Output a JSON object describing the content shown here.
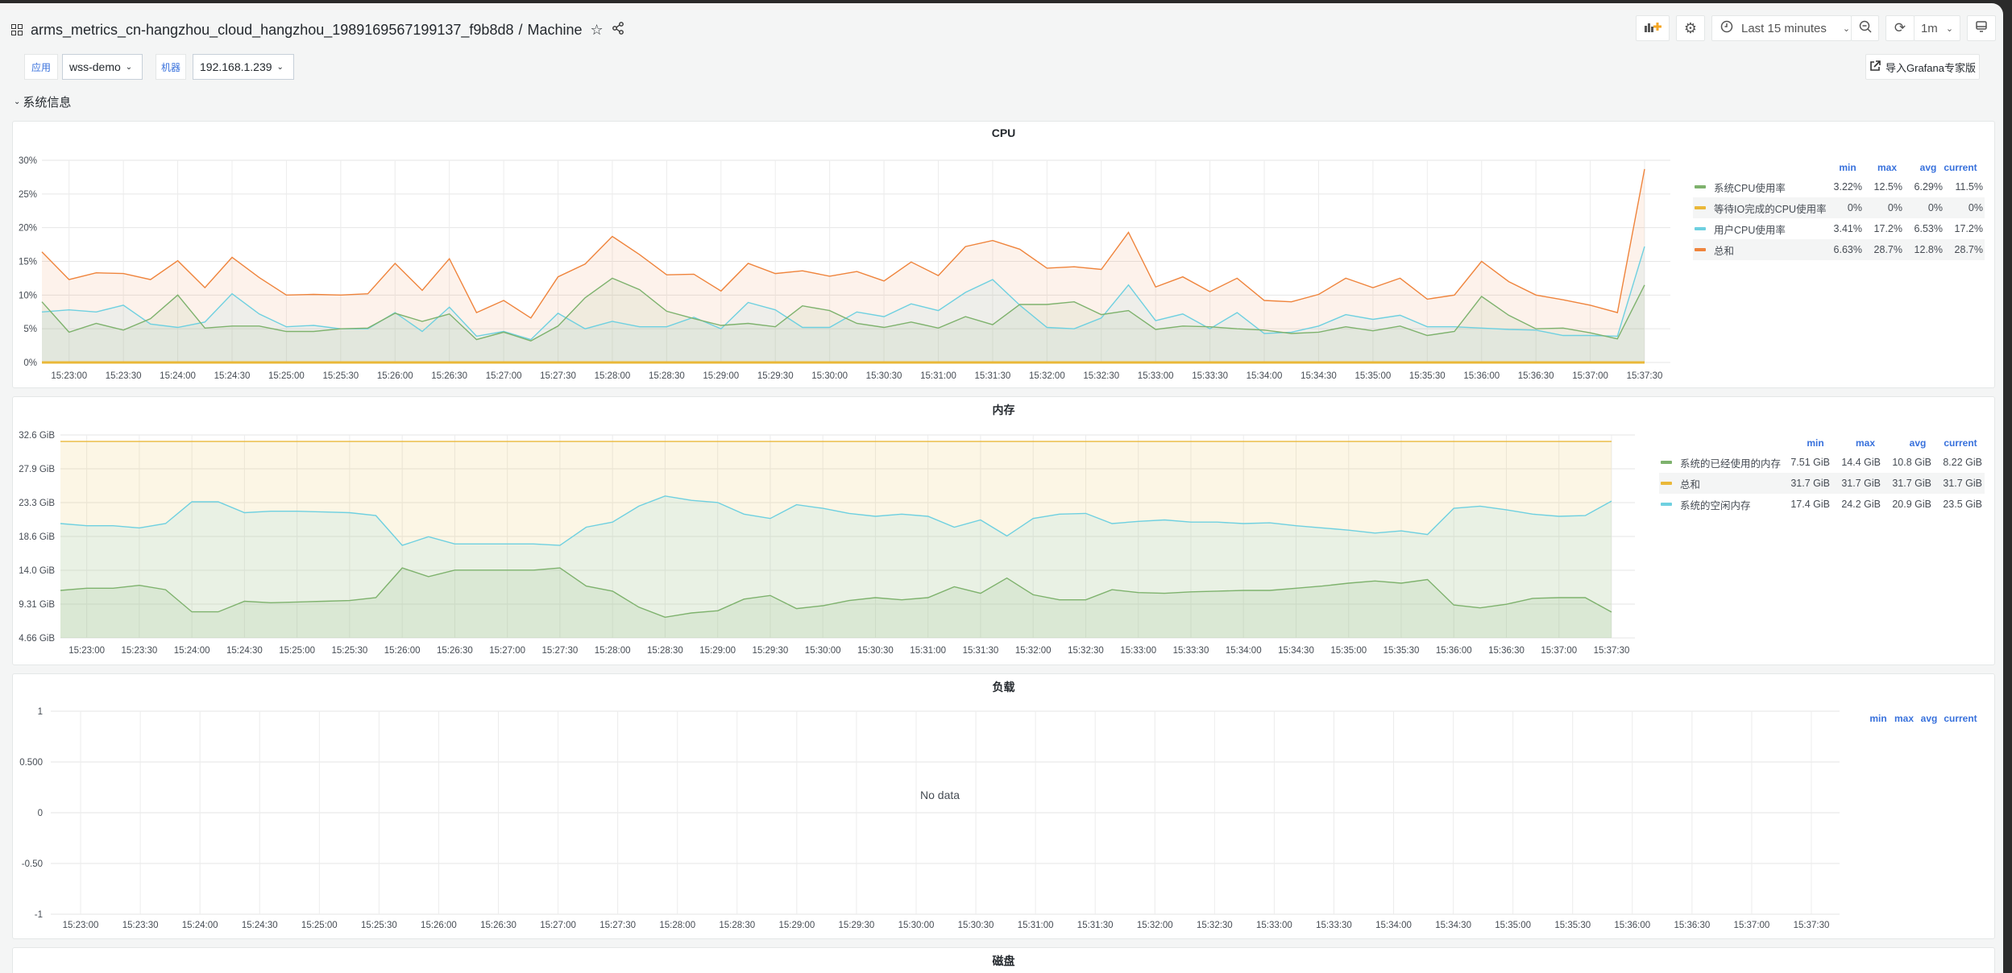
{
  "header": {
    "title": "arms_metrics_cn-hangzhou_cloud_hangzhou_1989169567199137_f9b8d8",
    "separator": "/",
    "page": "Machine",
    "time_range": "Last 15 minutes",
    "refresh_interval": "1m",
    "import_button": "导入Grafana专家版"
  },
  "variables": [
    {
      "label": "应用",
      "value": "wss-demo"
    },
    {
      "label": "机器",
      "value": "192.168.1.239"
    }
  ],
  "row": {
    "title": "系统信息"
  },
  "colors": {
    "green": "#7eb26d",
    "yellow": "#eab839",
    "cyan": "#6ed0e0",
    "orange": "#ef843c",
    "accent": "#3871dc"
  },
  "legend_headers": [
    "min",
    "max",
    "avg",
    "current"
  ],
  "panels": {
    "cpu": {
      "title": "CPU",
      "legend": [
        {
          "name": "系统CPU使用率",
          "min": "3.22%",
          "max": "12.5%",
          "avg": "6.29%",
          "current": "11.5%"
        },
        {
          "name": "等待IO完成的CPU使用率",
          "min": "0%",
          "max": "0%",
          "avg": "0%",
          "current": "0%"
        },
        {
          "name": "用户CPU使用率",
          "min": "3.41%",
          "max": "17.2%",
          "avg": "6.53%",
          "current": "17.2%"
        },
        {
          "name": "总和",
          "min": "6.63%",
          "max": "28.7%",
          "avg": "12.8%",
          "current": "28.7%"
        }
      ]
    },
    "memory": {
      "title": "内存",
      "legend": [
        {
          "name": "系统的已经使用的内存",
          "min": "7.51 GiB",
          "max": "14.4 GiB",
          "avg": "10.8 GiB",
          "current": "8.22 GiB"
        },
        {
          "name": "总和",
          "min": "31.7 GiB",
          "max": "31.7 GiB",
          "avg": "31.7 GiB",
          "current": "31.7 GiB"
        },
        {
          "name": "系统的空闲内存",
          "min": "17.4 GiB",
          "max": "24.2 GiB",
          "avg": "20.9 GiB",
          "current": "23.5 GiB"
        }
      ]
    },
    "load": {
      "title": "负载",
      "no_data": "No data"
    },
    "disk": {
      "title": "磁盘"
    }
  },
  "chart_data": [
    {
      "type": "area",
      "title": "CPU",
      "x": [
        "15:22:45",
        "15:23:00",
        "15:23:15",
        "15:23:30",
        "15:23:45",
        "15:24:00",
        "15:24:15",
        "15:24:30",
        "15:24:45",
        "15:25:00",
        "15:25:15",
        "15:25:30",
        "15:25:45",
        "15:26:00",
        "15:26:15",
        "15:26:30",
        "15:26:45",
        "15:27:00",
        "15:27:15",
        "15:27:30",
        "15:27:45",
        "15:28:00",
        "15:28:15",
        "15:28:30",
        "15:28:45",
        "15:29:00",
        "15:29:15",
        "15:29:30",
        "15:29:45",
        "15:30:00",
        "15:30:15",
        "15:30:30",
        "15:30:45",
        "15:31:00",
        "15:31:15",
        "15:31:30",
        "15:31:45",
        "15:32:00",
        "15:32:15",
        "15:32:30",
        "15:32:45",
        "15:33:00",
        "15:33:15",
        "15:33:30",
        "15:33:45",
        "15:34:00",
        "15:34:15",
        "15:34:30",
        "15:34:45",
        "15:35:00",
        "15:35:15",
        "15:35:30",
        "15:35:45",
        "15:36:00",
        "15:36:15",
        "15:36:30",
        "15:36:45",
        "15:37:00",
        "15:37:15",
        "15:37:30"
      ],
      "x_tick_labels": [
        "15:23:00",
        "15:23:30",
        "15:24:00",
        "15:24:30",
        "15:25:00",
        "15:25:30",
        "15:26:00",
        "15:26:30",
        "15:27:00",
        "15:27:30",
        "15:28:00",
        "15:28:30",
        "15:29:00",
        "15:29:30",
        "15:30:00",
        "15:30:30",
        "15:31:00",
        "15:31:30",
        "15:32:00",
        "15:32:30",
        "15:33:00",
        "15:33:30",
        "15:34:00",
        "15:34:30",
        "15:35:00",
        "15:35:30",
        "15:36:00",
        "15:36:30",
        "15:37:00",
        "15:37:30"
      ],
      "y_tick_labels": [
        "0%",
        "5%",
        "10%",
        "15%",
        "20%",
        "25%",
        "30%"
      ],
      "ylim": [
        0,
        30
      ],
      "grid": true,
      "legend": "right",
      "series": [
        {
          "name": "总和",
          "color": "#ef843c",
          "values": [
            16.4,
            12.3,
            13.3,
            13.2,
            12.3,
            15.1,
            11.1,
            15.6,
            12.6,
            10.0,
            10.1,
            10.0,
            10.2,
            14.7,
            10.7,
            15.4,
            7.4,
            9.2,
            6.6,
            12.7,
            14.6,
            18.7,
            16.0,
            13.0,
            13.1,
            10.6,
            14.7,
            13.2,
            13.6,
            12.8,
            13.5,
            12.1,
            14.9,
            12.9,
            17.2,
            18.1,
            16.8,
            14.0,
            14.2,
            13.8,
            19.3,
            11.2,
            12.7,
            10.5,
            12.5,
            9.2,
            9.0,
            10.1,
            12.5,
            11.1,
            12.5,
            9.4,
            10.0,
            15.0,
            12.0,
            10.0,
            9.3,
            8.5,
            7.4,
            28.7
          ]
        },
        {
          "name": "用户CPU使用率",
          "color": "#6ed0e0",
          "values": [
            7.5,
            7.8,
            7.5,
            8.5,
            5.7,
            5.2,
            6.0,
            10.2,
            7.2,
            5.3,
            5.5,
            5.0,
            5.0,
            7.4,
            4.6,
            8.2,
            3.9,
            4.6,
            3.4,
            7.3,
            5.0,
            6.1,
            5.3,
            5.3,
            6.7,
            5.0,
            8.9,
            7.8,
            5.2,
            5.2,
            7.5,
            6.8,
            8.7,
            7.7,
            10.4,
            12.3,
            8.5,
            5.2,
            5.0,
            6.6,
            11.5,
            6.2,
            7.2,
            5.0,
            7.4,
            4.3,
            4.5,
            5.4,
            7.1,
            6.4,
            7.0,
            5.3,
            5.3,
            5.1,
            4.9,
            4.8,
            4.0,
            4.0,
            3.9,
            17.2
          ]
        },
        {
          "name": "系统CPU使用率",
          "color": "#7eb26d",
          "values": [
            9.0,
            4.5,
            5.8,
            4.8,
            6.5,
            10.0,
            5.1,
            5.4,
            5.4,
            4.6,
            4.6,
            5.0,
            5.1,
            7.3,
            6.1,
            7.2,
            3.4,
            4.5,
            3.2,
            5.4,
            9.6,
            12.5,
            10.8,
            7.6,
            6.5,
            5.5,
            5.8,
            5.3,
            8.4,
            7.7,
            5.8,
            5.2,
            6.0,
            5.1,
            6.8,
            5.6,
            8.6,
            8.6,
            9.0,
            7.1,
            7.7,
            4.9,
            5.4,
            5.3,
            5.0,
            4.8,
            4.3,
            4.5,
            5.3,
            4.7,
            5.4,
            4.0,
            4.6,
            9.8,
            7.0,
            5.0,
            5.1,
            4.4,
            3.5,
            11.5
          ]
        },
        {
          "name": "等待IO完成的CPU使用率",
          "color": "#eab839",
          "values": [
            0,
            0,
            0,
            0,
            0,
            0,
            0,
            0,
            0,
            0,
            0,
            0,
            0,
            0,
            0,
            0,
            0,
            0,
            0,
            0,
            0,
            0,
            0,
            0,
            0,
            0,
            0,
            0,
            0,
            0,
            0,
            0,
            0,
            0,
            0,
            0,
            0,
            0,
            0,
            0,
            0,
            0,
            0,
            0,
            0,
            0,
            0,
            0,
            0,
            0,
            0,
            0,
            0,
            0,
            0,
            0,
            0,
            0,
            0,
            0
          ]
        }
      ]
    },
    {
      "type": "area",
      "title": "内存",
      "x": [
        "15:22:45",
        "15:23:00",
        "15:23:15",
        "15:23:30",
        "15:23:45",
        "15:24:00",
        "15:24:15",
        "15:24:30",
        "15:24:45",
        "15:25:00",
        "15:25:15",
        "15:25:30",
        "15:25:45",
        "15:26:00",
        "15:26:15",
        "15:26:30",
        "15:26:45",
        "15:27:00",
        "15:27:15",
        "15:27:30",
        "15:27:45",
        "15:28:00",
        "15:28:15",
        "15:28:30",
        "15:28:45",
        "15:29:00",
        "15:29:15",
        "15:29:30",
        "15:29:45",
        "15:30:00",
        "15:30:15",
        "15:30:30",
        "15:30:45",
        "15:31:00",
        "15:31:15",
        "15:31:30",
        "15:31:45",
        "15:32:00",
        "15:32:15",
        "15:32:30",
        "15:32:45",
        "15:33:00",
        "15:33:15",
        "15:33:30",
        "15:33:45",
        "15:34:00",
        "15:34:15",
        "15:34:30",
        "15:34:45",
        "15:35:00",
        "15:35:15",
        "15:35:30",
        "15:35:45",
        "15:36:00",
        "15:36:15",
        "15:36:30",
        "15:36:45",
        "15:37:00",
        "15:37:15",
        "15:37:30"
      ],
      "x_tick_labels": [
        "15:23:00",
        "15:23:30",
        "15:24:00",
        "15:24:30",
        "15:25:00",
        "15:25:30",
        "15:26:00",
        "15:26:30",
        "15:27:00",
        "15:27:30",
        "15:28:00",
        "15:28:30",
        "15:29:00",
        "15:29:30",
        "15:30:00",
        "15:30:30",
        "15:31:00",
        "15:31:30",
        "15:32:00",
        "15:32:30",
        "15:33:00",
        "15:33:30",
        "15:34:00",
        "15:34:30",
        "15:35:00",
        "15:35:30",
        "15:36:00",
        "15:36:30",
        "15:37:00",
        "15:37:30"
      ],
      "y_tick_labels": [
        "4.66 GiB",
        "9.31 GiB",
        "14.0 GiB",
        "18.6 GiB",
        "23.3 GiB",
        "27.9 GiB",
        "32.6 GiB"
      ],
      "ylim": [
        4.66,
        32.6
      ],
      "grid": true,
      "legend": "right",
      "series": [
        {
          "name": "总和",
          "color": "#eab839",
          "values": [
            31.7,
            31.7,
            31.7,
            31.7,
            31.7,
            31.7,
            31.7,
            31.7,
            31.7,
            31.7,
            31.7,
            31.7,
            31.7,
            31.7,
            31.7,
            31.7,
            31.7,
            31.7,
            31.7,
            31.7,
            31.7,
            31.7,
            31.7,
            31.7,
            31.7,
            31.7,
            31.7,
            31.7,
            31.7,
            31.7,
            31.7,
            31.7,
            31.7,
            31.7,
            31.7,
            31.7,
            31.7,
            31.7,
            31.7,
            31.7,
            31.7,
            31.7,
            31.7,
            31.7,
            31.7,
            31.7,
            31.7,
            31.7,
            31.7,
            31.7,
            31.7,
            31.7,
            31.7,
            31.7,
            31.7,
            31.7,
            31.7,
            31.7,
            31.7,
            31.7
          ]
        },
        {
          "name": "系统的空闲内存",
          "color": "#6ed0e0",
          "values": [
            20.4,
            20.1,
            20.1,
            19.8,
            20.4,
            23.4,
            23.4,
            21.9,
            22.1,
            22.1,
            22.0,
            21.9,
            21.5,
            17.4,
            18.6,
            17.6,
            17.6,
            17.6,
            17.6,
            17.4,
            19.9,
            20.6,
            22.8,
            24.2,
            23.6,
            23.3,
            21.7,
            21.1,
            23.0,
            22.5,
            21.8,
            21.4,
            21.7,
            21.4,
            19.9,
            20.9,
            18.7,
            21.1,
            21.7,
            21.8,
            20.4,
            20.7,
            20.9,
            20.6,
            20.6,
            20.4,
            20.5,
            20.1,
            19.8,
            19.5,
            19.1,
            19.4,
            18.9,
            22.5,
            22.8,
            22.3,
            21.7,
            21.4,
            21.5,
            23.5
          ]
        },
        {
          "name": "系统的已经使用的内存",
          "color": "#7eb26d",
          "values": [
            11.2,
            11.5,
            11.5,
            11.9,
            11.3,
            8.25,
            8.25,
            9.7,
            9.5,
            9.6,
            9.7,
            9.8,
            10.2,
            14.3,
            13.1,
            14.0,
            14.0,
            14.0,
            14.0,
            14.3,
            11.8,
            11.1,
            8.9,
            7.51,
            8.1,
            8.4,
            10.0,
            10.5,
            8.7,
            9.1,
            9.8,
            10.2,
            9.9,
            10.2,
            11.7,
            10.8,
            12.9,
            10.6,
            9.9,
            9.9,
            11.3,
            10.9,
            10.8,
            11.0,
            11.1,
            11.2,
            11.2,
            11.5,
            11.8,
            12.2,
            12.5,
            12.2,
            12.7,
            9.2,
            8.8,
            9.3,
            10.1,
            10.2,
            10.2,
            8.22
          ]
        }
      ]
    },
    {
      "type": "line",
      "title": "负载",
      "x_tick_labels": [
        "15:23:00",
        "15:23:30",
        "15:24:00",
        "15:24:30",
        "15:25:00",
        "15:25:30",
        "15:26:00",
        "15:26:30",
        "15:27:00",
        "15:27:30",
        "15:28:00",
        "15:28:30",
        "15:29:00",
        "15:29:30",
        "15:30:00",
        "15:30:30",
        "15:31:00",
        "15:31:30",
        "15:32:00",
        "15:32:30",
        "15:33:00",
        "15:33:30",
        "15:34:00",
        "15:34:30",
        "15:35:00",
        "15:35:30",
        "15:36:00",
        "15:36:30",
        "15:37:00",
        "15:37:30"
      ],
      "y_tick_labels": [
        "-1",
        "-0.50",
        "0",
        "0.500",
        "1"
      ],
      "ylim": [
        -1,
        1
      ],
      "grid": true,
      "legend": "right",
      "series": []
    }
  ]
}
